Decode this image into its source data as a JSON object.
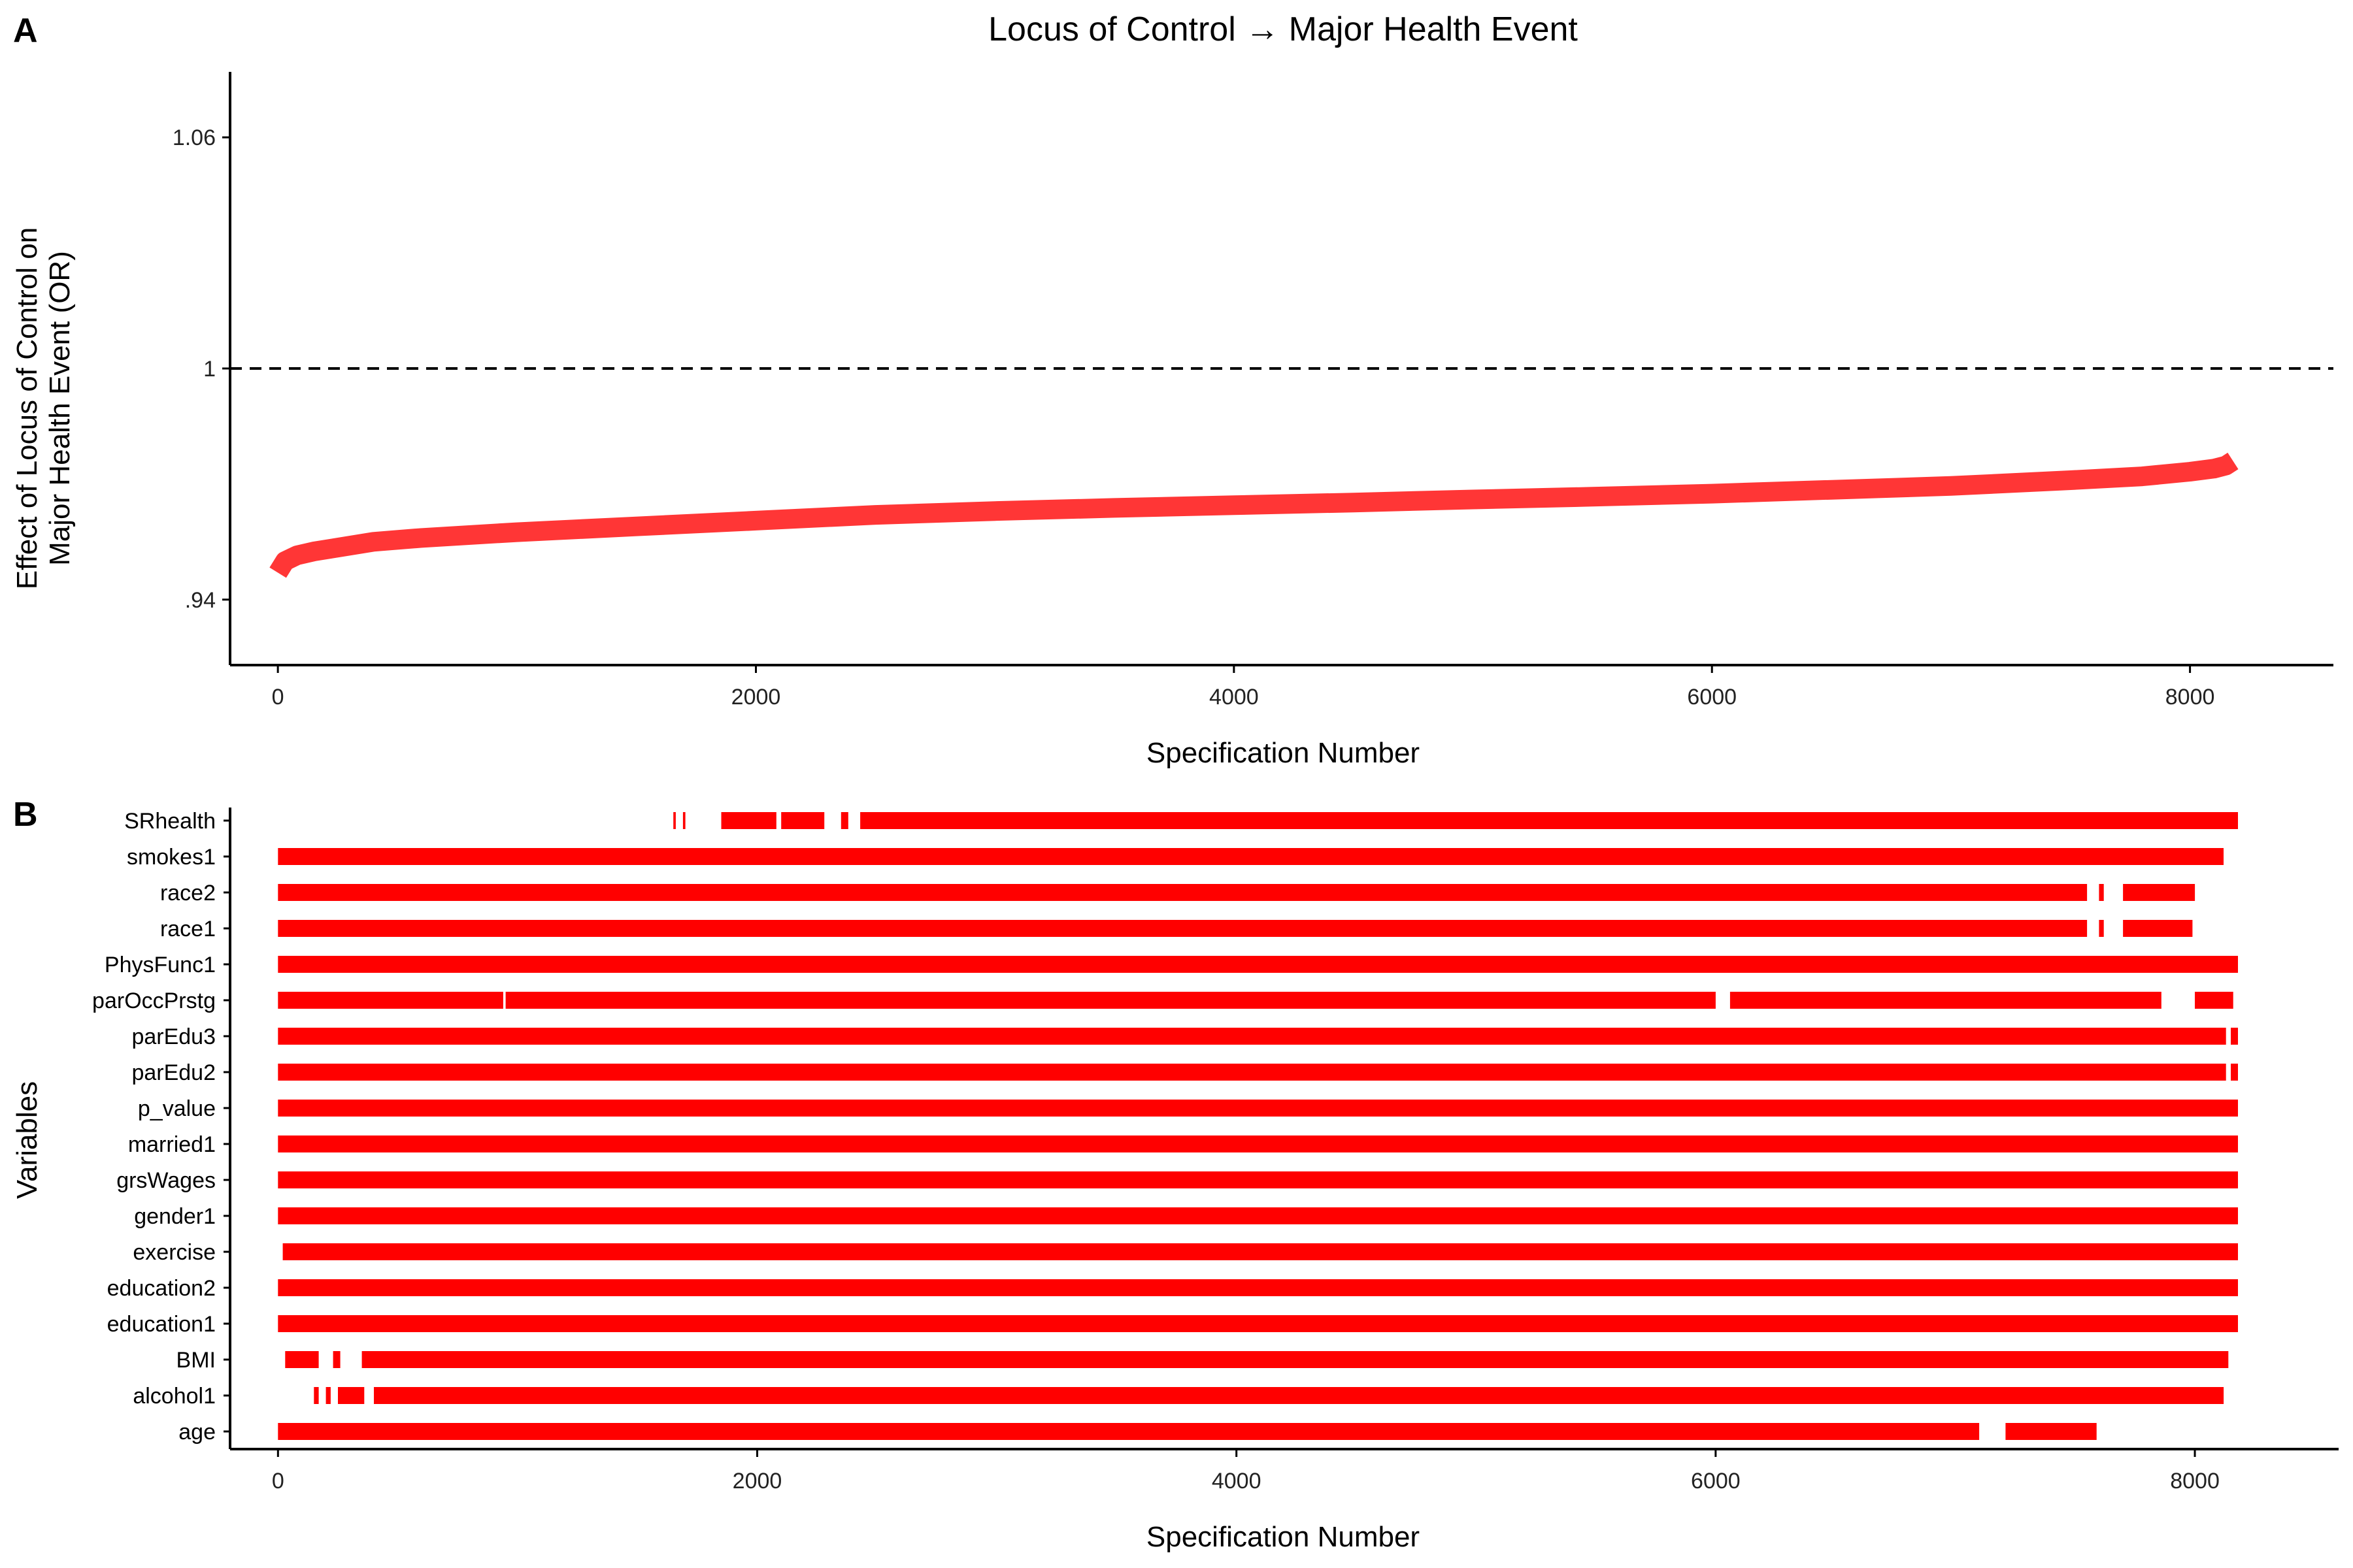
{
  "chart_data": [
    {
      "panel": "A",
      "type": "line",
      "title": "Locus of Control → Major Health Event",
      "xlabel": "Specification Number",
      "ylabel_lines": [
        "Effect of Locus of Control on",
        "Major Health Event (OR)"
      ],
      "xlim": [
        -200,
        8600
      ],
      "ylim": [
        0.923,
        1.077
      ],
      "xticks": [
        0,
        2000,
        4000,
        6000,
        8000
      ],
      "yticks": [
        0.94,
        1,
        1.06
      ],
      "ytick_labels": [
        ".94",
        "1",
        "1.06"
      ],
      "reference_line": {
        "y": 1,
        "style": "dashed"
      },
      "color": "#ff2b2b",
      "grid": false,
      "series": [
        {
          "x": [
            0,
            30,
            80,
            150,
            250,
            400,
            600,
            1000,
            1500,
            2000,
            2500,
            3000,
            3500,
            4000,
            4500,
            5000,
            5500,
            6000,
            6500,
            7000,
            7500,
            7800,
            8000,
            8100,
            8150,
            8180
          ],
          "y": [
            0.947,
            0.95,
            0.9515,
            0.9525,
            0.9535,
            0.955,
            0.956,
            0.9575,
            0.959,
            0.9605,
            0.962,
            0.963,
            0.9638,
            0.9645,
            0.9652,
            0.966,
            0.9667,
            0.9675,
            0.9685,
            0.9695,
            0.971,
            0.972,
            0.9732,
            0.974,
            0.9748,
            0.976
          ]
        }
      ]
    },
    {
      "panel": "B",
      "type": "heatmap",
      "xlabel": "Specification Number",
      "ylabel": "Variables",
      "xlim": [
        -200,
        8600
      ],
      "xticks": [
        0,
        2000,
        4000,
        6000,
        8000
      ],
      "color": "#ff0000",
      "grid": false,
      "rows": [
        {
          "name": "SRhealth",
          "segments": [
            [
              1650,
              1660
            ],
            [
              1690,
              1700
            ],
            [
              1850,
              2080
            ],
            [
              2100,
              2280
            ],
            [
              2350,
              2380
            ],
            [
              2430,
              8180
            ]
          ]
        },
        {
          "name": "smokes1",
          "segments": [
            [
              0,
              8120
            ]
          ]
        },
        {
          "name": "race2",
          "segments": [
            [
              0,
              7550
            ],
            [
              7600,
              7620
            ],
            [
              7700,
              8000
            ]
          ]
        },
        {
          "name": "race1",
          "segments": [
            [
              0,
              7550
            ],
            [
              7600,
              7620
            ],
            [
              7700,
              7990
            ]
          ]
        },
        {
          "name": "PhysFunc1",
          "segments": [
            [
              0,
              8180
            ]
          ]
        },
        {
          "name": "parOccPrstg",
          "segments": [
            [
              0,
              940
            ],
            [
              950,
              6000
            ],
            [
              6060,
              7860
            ],
            [
              8000,
              8160
            ]
          ]
        },
        {
          "name": "parEdu3",
          "segments": [
            [
              0,
              8130
            ],
            [
              8150,
              8180
            ]
          ]
        },
        {
          "name": "parEdu2",
          "segments": [
            [
              0,
              8130
            ],
            [
              8150,
              8180
            ]
          ]
        },
        {
          "name": "p_value",
          "segments": [
            [
              0,
              8180
            ]
          ]
        },
        {
          "name": "married1",
          "segments": [
            [
              0,
              8180
            ]
          ]
        },
        {
          "name": "grsWages",
          "segments": [
            [
              0,
              8180
            ]
          ]
        },
        {
          "name": "gender1",
          "segments": [
            [
              0,
              8180
            ]
          ]
        },
        {
          "name": "exercise",
          "segments": [
            [
              20,
              8180
            ]
          ]
        },
        {
          "name": "education2",
          "segments": [
            [
              0,
              8180
            ]
          ]
        },
        {
          "name": "education1",
          "segments": [
            [
              0,
              8180
            ]
          ]
        },
        {
          "name": "BMI",
          "segments": [
            [
              30,
              170
            ],
            [
              230,
              260
            ],
            [
              350,
              8140
            ]
          ]
        },
        {
          "name": "alcohol1",
          "segments": [
            [
              150,
              170
            ],
            [
              200,
              220
            ],
            [
              250,
              360
            ],
            [
              400,
              8120
            ]
          ]
        },
        {
          "name": "age",
          "segments": [
            [
              0,
              7100
            ],
            [
              7210,
              7590
            ]
          ]
        }
      ]
    }
  ],
  "panel_labels": [
    "A",
    "B"
  ]
}
